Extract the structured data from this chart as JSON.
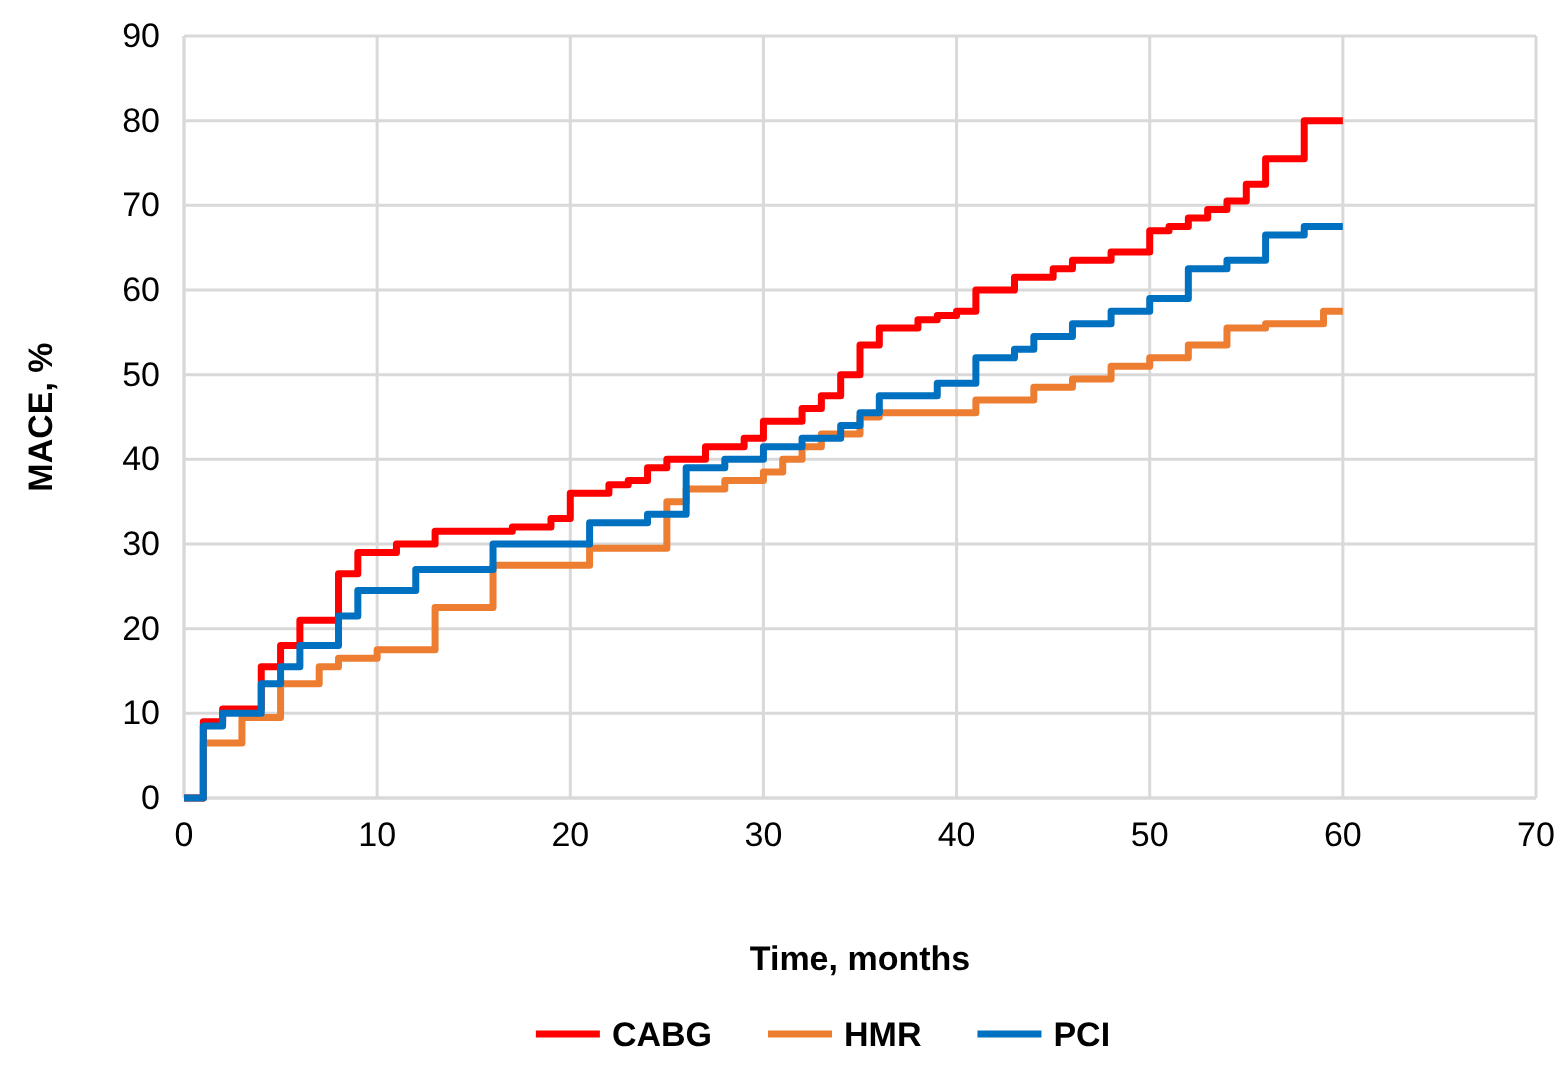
{
  "chart_data": {
    "type": "step",
    "xlabel": "Time, months",
    "ylabel": "MACE, %",
    "xlim": [
      0,
      70
    ],
    "xticks": [
      0,
      10,
      20,
      30,
      40,
      50,
      60,
      70
    ],
    "ylim": [
      0,
      90
    ],
    "yticks": [
      0,
      10,
      20,
      30,
      40,
      50,
      60,
      70,
      80,
      90
    ],
    "grid": true,
    "legend": "bottom",
    "line_style": "solid",
    "marker": "none",
    "series": [
      {
        "name": "CABG",
        "color": "#ff0000",
        "x": [
          0,
          1,
          2,
          4,
          5,
          6,
          8,
          9,
          11,
          13,
          17,
          19,
          20,
          22,
          23,
          24,
          25,
          27,
          29,
          30,
          32,
          33,
          34,
          35,
          36,
          38,
          39,
          40,
          41,
          43,
          45,
          46,
          48,
          50,
          51,
          52,
          53,
          54,
          55,
          56,
          58,
          60
        ],
        "values": [
          0,
          9,
          10.5,
          15.5,
          18,
          21,
          26.5,
          29,
          30,
          31.5,
          32,
          33,
          36,
          37,
          37.5,
          39,
          40,
          41.5,
          42.5,
          44.5,
          46,
          47.5,
          50,
          53.5,
          55.5,
          56.5,
          57,
          57.5,
          60,
          61.5,
          62.5,
          63.5,
          64.5,
          67,
          67.5,
          68.5,
          69.5,
          70.5,
          72.5,
          75.5,
          80,
          80
        ]
      },
      {
        "name": "HMR",
        "color": "#ed7d31",
        "x": [
          0,
          1,
          3,
          5,
          7,
          8,
          10,
          13,
          16,
          21,
          25,
          26,
          28,
          30,
          31,
          32,
          33,
          35,
          36,
          41,
          44,
          46,
          48,
          50,
          52,
          54,
          56,
          59,
          60
        ],
        "values": [
          0,
          6.5,
          9.5,
          13.5,
          15.5,
          16.5,
          17.5,
          22.5,
          27.5,
          29.5,
          35,
          36.5,
          37.5,
          38.5,
          40,
          41.5,
          43,
          45,
          45.5,
          47,
          48.5,
          49.5,
          51,
          52,
          53.5,
          55.5,
          56,
          57.5,
          57.5
        ]
      },
      {
        "name": "PCI",
        "color": "#0070c0",
        "x": [
          0,
          1,
          2,
          4,
          5,
          6,
          8,
          9,
          12,
          16,
          21,
          24,
          26,
          28,
          30,
          32,
          34,
          35,
          36,
          39,
          41,
          43,
          44,
          46,
          48,
          50,
          52,
          54,
          56,
          58,
          60
        ],
        "values": [
          0,
          8.5,
          10,
          13.5,
          15.5,
          18,
          21.5,
          24.5,
          27,
          30,
          32.5,
          33.5,
          39,
          40,
          41.5,
          42.5,
          44,
          45.5,
          47.5,
          49,
          52,
          53,
          54.5,
          56,
          57.5,
          59,
          62.5,
          63.5,
          66.5,
          67.5,
          67.5
        ]
      }
    ]
  }
}
